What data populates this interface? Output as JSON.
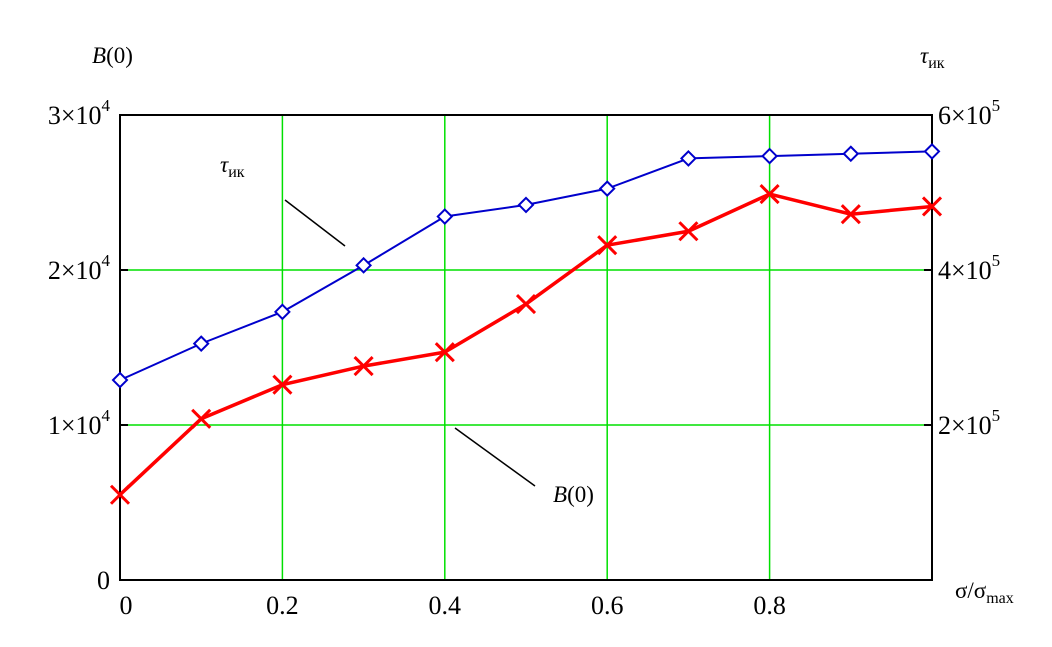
{
  "chart_data": {
    "type": "line",
    "x": [
      0,
      0.1,
      0.2,
      0.3,
      0.4,
      0.5,
      0.6,
      0.7,
      0.8,
      0.9,
      1.0
    ],
    "xlabel": {
      "base": "σ/σ",
      "sub": "max"
    },
    "xlim": [
      0,
      1.0
    ],
    "x_ticks": [
      "0",
      "0.2",
      "0.4",
      "0.6",
      "0.8"
    ],
    "grid": true,
    "left_axis": {
      "label": {
        "base": "B",
        "rest": "(0)"
      },
      "ylim": [
        0,
        30000
      ],
      "ticks": [
        {
          "value": 0,
          "mantissa": "0",
          "exp": ""
        },
        {
          "value": 10000,
          "mantissa": "1×10",
          "exp": "4"
        },
        {
          "value": 20000,
          "mantissa": "2×10",
          "exp": "4"
        },
        {
          "value": 30000,
          "mantissa": "3×10",
          "exp": "4"
        }
      ]
    },
    "right_axis": {
      "label": {
        "base": "τ",
        "sub": "ик"
      },
      "ylim": [
        0,
        600000
      ],
      "ticks": [
        {
          "value": 200000,
          "mantissa": "2×10",
          "exp": "5"
        },
        {
          "value": 400000,
          "mantissa": "4×10",
          "exp": "5"
        },
        {
          "value": 600000,
          "mantissa": "6×10",
          "exp": "5"
        }
      ]
    },
    "series": [
      {
        "name": "τик",
        "label": {
          "base": "τ",
          "sub": "ик"
        },
        "axis": "right",
        "marker": "diamond",
        "color": "#0000cc",
        "values": [
          258000,
          305000,
          346000,
          406000,
          469000,
          484000,
          505000,
          544000,
          547000,
          550000,
          553000
        ]
      },
      {
        "name": "B(0)",
        "label": {
          "base": "B",
          "rest": "(0)"
        },
        "axis": "left",
        "marker": "x",
        "color": "#ff0000",
        "values": [
          5500,
          10400,
          12600,
          13800,
          14700,
          17800,
          21600,
          22500,
          24900,
          23600,
          24100
        ]
      }
    ]
  }
}
